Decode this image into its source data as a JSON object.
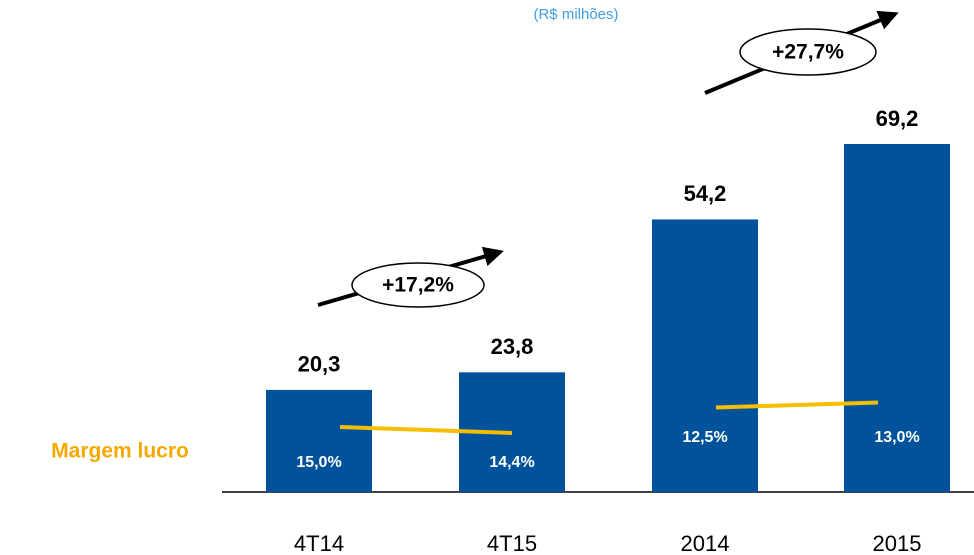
{
  "chart_data": {
    "type": "bar",
    "subtitle": "(R$ milhões)",
    "categories": [
      "4T14",
      "4T15",
      "2014",
      "2015"
    ],
    "values": [
      20.3,
      23.8,
      54.2,
      69.2
    ],
    "value_labels": [
      "20,3",
      "23,8",
      "54,2",
      "69,2"
    ],
    "color": "#00539b",
    "margin": {
      "name": "Margem lucro",
      "color": "#f5be00",
      "values": [
        15.0,
        14.4,
        12.5,
        13.0
      ],
      "value_labels": [
        "15,0%",
        "14,4%",
        "12,5%",
        "13,0%"
      ]
    },
    "annotations": [
      "+17,2%",
      "+27,7%"
    ]
  }
}
